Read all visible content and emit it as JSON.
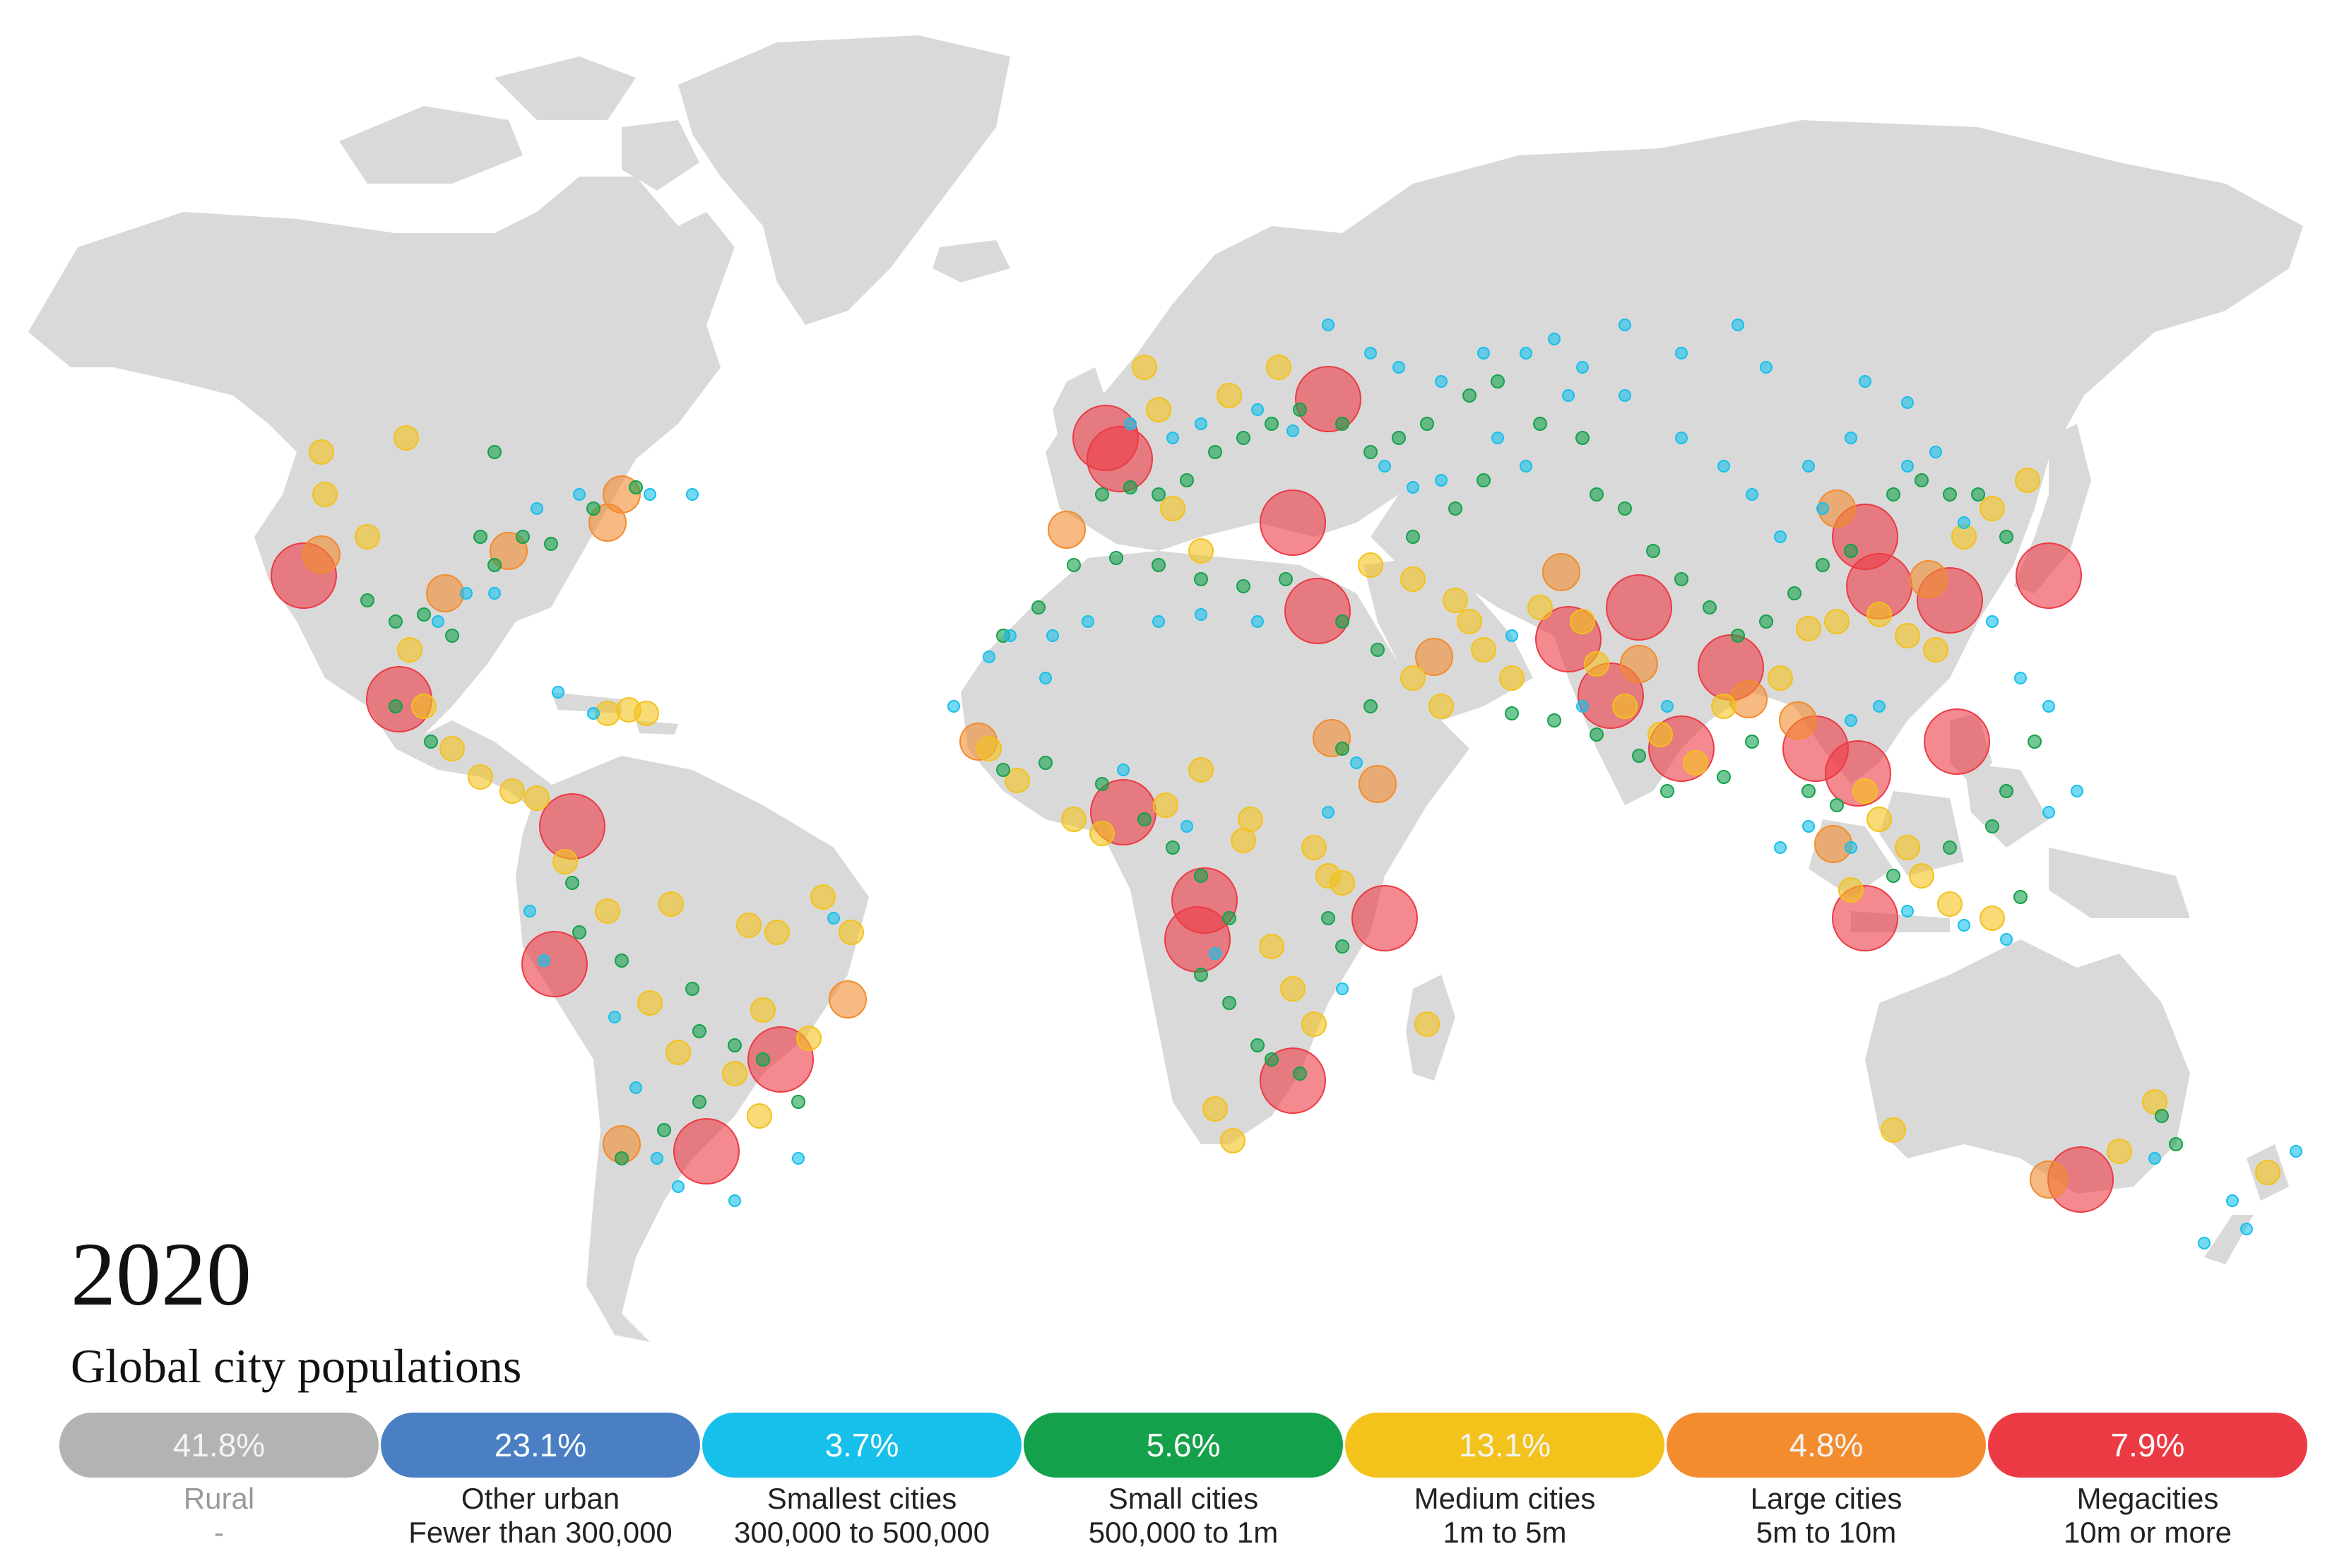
{
  "title": "2020",
  "subtitle": "Global city populations",
  "colors": {
    "land": "#d9d9d9",
    "rural": "#b3b3b3",
    "other_urban": "#4a7fc4",
    "smallest": "#17c0ea",
    "small": "#15a14c",
    "medium": "#f3c21b",
    "large": "#f28c2e",
    "mega": "#ec3a44"
  },
  "legend": [
    {
      "share": "41.8%",
      "name": "Rural",
      "range": "-",
      "color": "#b3b3b3"
    },
    {
      "share": "23.1%",
      "name": "Other urban",
      "range": "Fewer than 300,000",
      "color": "#4a7fc4"
    },
    {
      "share": "3.7%",
      "name": "Smallest cities",
      "range": "300,000 to 500,000",
      "color": "#17c0ea"
    },
    {
      "share": "5.6%",
      "name": "Small cities",
      "range": "500,000 to 1m",
      "color": "#15a14c"
    },
    {
      "share": "13.1%",
      "name": "Medium cities",
      "range": "1m to 5m",
      "color": "#f3c21b"
    },
    {
      "share": "4.8%",
      "name": "Large cities",
      "range": "5m to 10m",
      "color": "#f28c2e"
    },
    {
      "share": "7.9%",
      "name": "Megacities",
      "range": "10m or more",
      "color": "#ec3a44"
    }
  ]
}
